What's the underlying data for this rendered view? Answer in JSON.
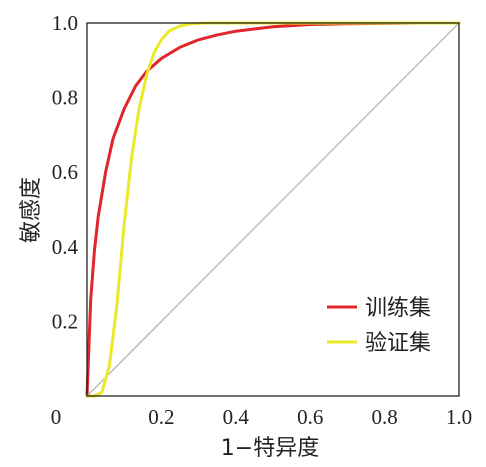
{
  "chart_data": {
    "type": "line",
    "xlabel": "1−特异度",
    "ylabel": "敏感度",
    "xlim": [
      0,
      1
    ],
    "ylim": [
      0,
      1
    ],
    "x_ticks": [
      "0",
      "0.2",
      "0.4",
      "0.6",
      "0.8",
      "1.0"
    ],
    "y_ticks": [
      "0.2",
      "0.4",
      "0.6",
      "0.8",
      "1.0"
    ],
    "grid": false,
    "legend_position": "bottom-right",
    "series": [
      {
        "name": "训练集",
        "color": "#e0262a",
        "x": [
          0,
          0.01,
          0.02,
          0.03,
          0.05,
          0.07,
          0.1,
          0.13,
          0.16,
          0.2,
          0.25,
          0.3,
          0.35,
          0.4,
          0.5,
          0.6,
          0.7,
          0.8,
          0.9,
          1.0
        ],
        "y": [
          0,
          0.26,
          0.39,
          0.48,
          0.6,
          0.69,
          0.77,
          0.83,
          0.87,
          0.905,
          0.935,
          0.955,
          0.968,
          0.978,
          0.99,
          0.996,
          0.998,
          0.999,
          1.0,
          1.0
        ]
      },
      {
        "name": "验证集",
        "color": "#eaea2a",
        "x": [
          0,
          0.02,
          0.04,
          0.06,
          0.08,
          0.1,
          0.12,
          0.14,
          0.16,
          0.18,
          0.2,
          0.22,
          0.25,
          0.28,
          0.32,
          0.4,
          0.5,
          1.0
        ],
        "y": [
          0,
          0.0,
          0.01,
          0.08,
          0.24,
          0.46,
          0.64,
          0.77,
          0.86,
          0.92,
          0.955,
          0.978,
          0.992,
          0.998,
          1.0,
          1.0,
          1.0,
          1.0
        ]
      },
      {
        "name": "",
        "color": "#bbbbbb",
        "x": [
          0,
          1
        ],
        "y": [
          0,
          1
        ]
      }
    ]
  }
}
